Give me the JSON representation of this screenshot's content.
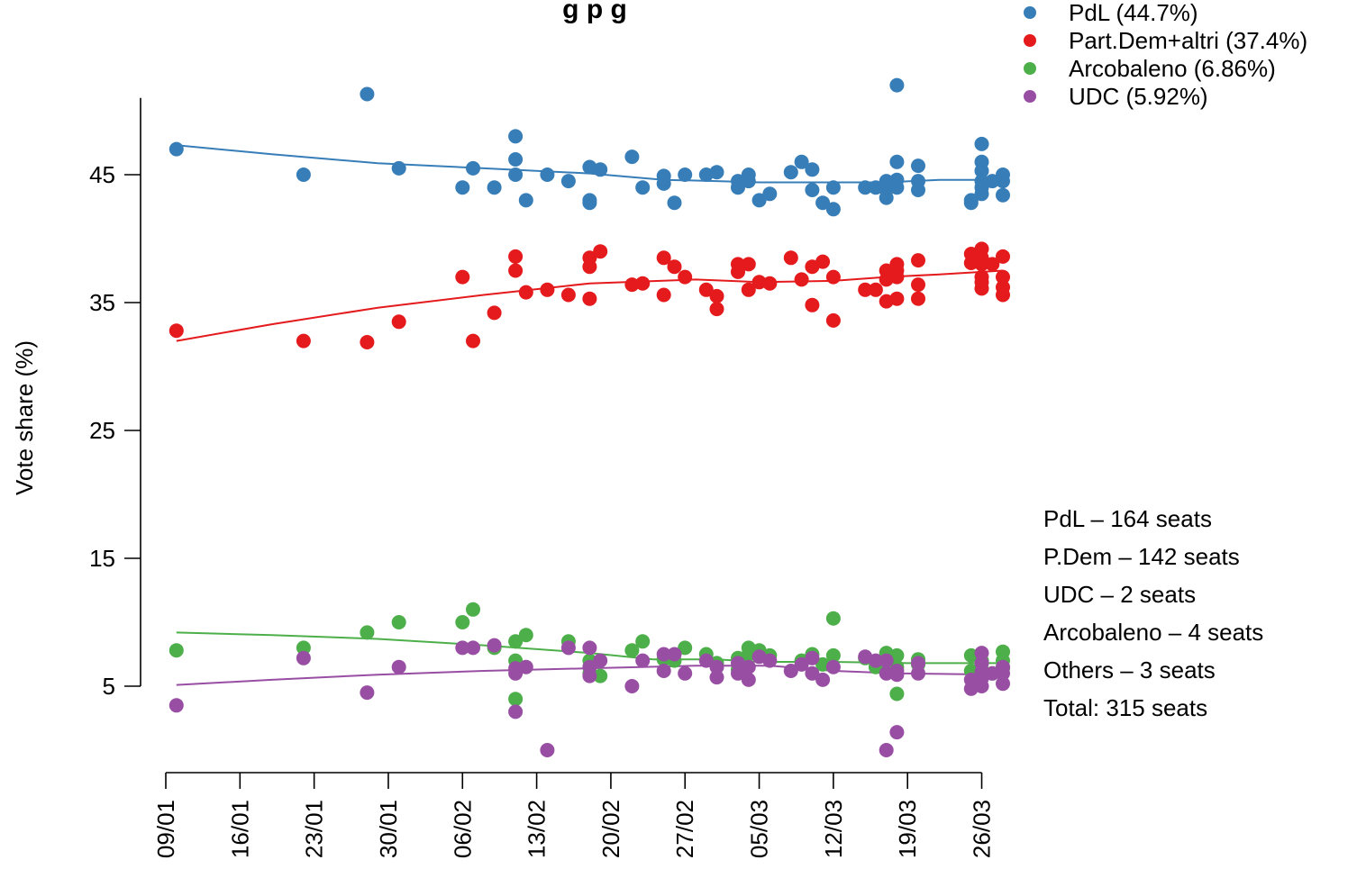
{
  "chart_data": {
    "type": "scatter",
    "title": "g                    p   g",
    "xlabel": "",
    "ylabel": "Vote share (%)",
    "x_tick_labels": [
      "09/01",
      "16/01",
      "23/01",
      "30/01",
      "06/02",
      "13/02",
      "20/02",
      "27/02",
      "05/03",
      "12/03",
      "19/03",
      "26/03"
    ],
    "x_start": "09/01",
    "x_range_days": [
      0,
      77
    ],
    "y_ticks": [
      5,
      15,
      25,
      35,
      45
    ],
    "ylim": [
      -2,
      52
    ],
    "grid": false,
    "legend_position": "top-right",
    "seats": [
      "PdL – 164 seats",
      "P.Dem – 142 seats",
      "UDC – 2 seats",
      "Arcobaleno – 4 seats",
      "Others – 3 seats",
      "Total: 315 seats"
    ],
    "series": [
      {
        "name": "PdL (44.7%)",
        "color": "#377eb8",
        "points": [
          [
            1,
            47
          ],
          [
            13,
            45
          ],
          [
            19,
            51.3
          ],
          [
            22,
            45.5
          ],
          [
            28,
            44
          ],
          [
            29,
            45.5
          ],
          [
            31,
            44
          ],
          [
            33,
            48
          ],
          [
            33,
            46.2
          ],
          [
            33,
            45
          ],
          [
            34,
            43
          ],
          [
            36,
            45
          ],
          [
            38,
            44.5
          ],
          [
            40,
            43
          ],
          [
            40,
            42.8
          ],
          [
            40,
            45.6
          ],
          [
            41,
            45.4
          ],
          [
            44,
            46.4
          ],
          [
            45,
            44
          ],
          [
            47,
            44.9
          ],
          [
            47,
            44.3
          ],
          [
            48,
            42.8
          ],
          [
            49,
            45
          ],
          [
            51,
            45
          ],
          [
            52,
            45.2
          ],
          [
            54,
            44.5
          ],
          [
            54,
            44
          ],
          [
            55,
            45
          ],
          [
            55,
            44.5
          ],
          [
            56,
            43
          ],
          [
            57,
            43.5
          ],
          [
            59,
            45.2
          ],
          [
            60,
            46
          ],
          [
            61,
            45.4
          ],
          [
            61,
            43.8
          ],
          [
            62,
            42.8
          ],
          [
            63,
            42.3
          ],
          [
            63,
            44
          ],
          [
            66,
            44
          ],
          [
            67,
            44
          ],
          [
            68,
            44.5
          ],
          [
            68,
            43.2
          ],
          [
            68,
            43.8
          ],
          [
            69,
            44
          ],
          [
            69,
            44.6
          ],
          [
            69,
            46
          ],
          [
            69,
            52
          ],
          [
            71,
            45.7
          ],
          [
            71,
            44.5
          ],
          [
            71,
            43.8
          ],
          [
            76,
            42.8
          ],
          [
            76,
            43
          ],
          [
            77,
            47.4
          ],
          [
            77,
            46
          ],
          [
            77,
            45.3
          ],
          [
            77,
            44.5
          ],
          [
            77,
            44
          ],
          [
            77,
            43.5
          ],
          [
            78,
            44.5
          ],
          [
            79,
            45
          ],
          [
            79,
            44.5
          ],
          [
            79,
            43.4
          ]
        ],
        "trend": [
          [
            1,
            47.3
          ],
          [
            10,
            46.6
          ],
          [
            20,
            45.9
          ],
          [
            30,
            45.5
          ],
          [
            40,
            45.1
          ],
          [
            47,
            44.6
          ],
          [
            52,
            44.5
          ],
          [
            56,
            44.4
          ],
          [
            62,
            44.4
          ],
          [
            68,
            44.4
          ],
          [
            73,
            44.6
          ],
          [
            79,
            44.6
          ]
        ]
      },
      {
        "name": "Part.Dem+altri (37.4%)",
        "color": "#e41a1c",
        "points": [
          [
            1,
            32.8
          ],
          [
            13,
            32
          ],
          [
            19,
            31.9
          ],
          [
            22,
            33.5
          ],
          [
            28,
            37
          ],
          [
            29,
            32
          ],
          [
            31,
            34.2
          ],
          [
            33,
            38.6
          ],
          [
            33,
            37.5
          ],
          [
            34,
            35.8
          ],
          [
            36,
            36
          ],
          [
            38,
            35.6
          ],
          [
            40,
            35.3
          ],
          [
            40,
            37.8
          ],
          [
            40,
            38.5
          ],
          [
            41,
            39
          ],
          [
            44,
            36.4
          ],
          [
            45,
            36.5
          ],
          [
            47,
            35.6
          ],
          [
            47,
            38.5
          ],
          [
            48,
            37.8
          ],
          [
            49,
            37
          ],
          [
            51,
            36
          ],
          [
            52,
            34.5
          ],
          [
            52,
            35.5
          ],
          [
            54,
            37.4
          ],
          [
            54,
            38
          ],
          [
            55,
            36
          ],
          [
            55,
            38
          ],
          [
            56,
            36.6
          ],
          [
            57,
            36.5
          ],
          [
            59,
            38.5
          ],
          [
            60,
            36.8
          ],
          [
            61,
            34.8
          ],
          [
            61,
            37.8
          ],
          [
            62,
            38.2
          ],
          [
            63,
            37
          ],
          [
            63,
            33.6
          ],
          [
            66,
            36
          ],
          [
            67,
            36
          ],
          [
            68,
            36.8
          ],
          [
            68,
            37.5
          ],
          [
            68,
            35.1
          ],
          [
            69,
            38
          ],
          [
            69,
            37.5
          ],
          [
            69,
            37
          ],
          [
            69,
            35.3
          ],
          [
            71,
            38.3
          ],
          [
            71,
            36.4
          ],
          [
            71,
            35.3
          ],
          [
            76,
            38.8
          ],
          [
            76,
            38.1
          ],
          [
            77,
            39.2
          ],
          [
            77,
            38.5
          ],
          [
            77,
            38
          ],
          [
            77,
            37
          ],
          [
            77,
            36.6
          ],
          [
            77,
            36.1
          ],
          [
            78,
            38
          ],
          [
            79,
            38.6
          ],
          [
            79,
            37
          ],
          [
            79,
            36.2
          ],
          [
            79,
            35.6
          ]
        ],
        "trend": [
          [
            1,
            32
          ],
          [
            10,
            33.3
          ],
          [
            20,
            34.6
          ],
          [
            30,
            35.6
          ],
          [
            40,
            36.5
          ],
          [
            50,
            36.8
          ],
          [
            56,
            36.6
          ],
          [
            63,
            36.7
          ],
          [
            68,
            37
          ],
          [
            73,
            37.2
          ],
          [
            79,
            37.5
          ]
        ]
      },
      {
        "name": "Arcobaleno (6.86%)",
        "color": "#4daf4a",
        "points": [
          [
            1,
            7.8
          ],
          [
            13,
            8
          ],
          [
            19,
            9.2
          ],
          [
            22,
            10
          ],
          [
            28,
            10
          ],
          [
            29,
            11
          ],
          [
            31,
            8
          ],
          [
            33,
            8.5
          ],
          [
            33,
            7
          ],
          [
            33,
            4
          ],
          [
            34,
            9
          ],
          [
            38,
            8.5
          ],
          [
            40,
            7
          ],
          [
            40,
            6
          ],
          [
            41,
            5.8
          ],
          [
            44,
            7.8
          ],
          [
            45,
            8.5
          ],
          [
            47,
            7.1
          ],
          [
            48,
            7
          ],
          [
            49,
            8
          ],
          [
            51,
            7.5
          ],
          [
            52,
            6.8
          ],
          [
            54,
            7.2
          ],
          [
            54,
            6.3
          ],
          [
            55,
            8
          ],
          [
            55,
            7.5
          ],
          [
            56,
            7.8
          ],
          [
            57,
            7.4
          ],
          [
            60,
            7
          ],
          [
            61,
            7.5
          ],
          [
            62,
            6.7
          ],
          [
            63,
            10.3
          ],
          [
            63,
            7.4
          ],
          [
            66,
            7.2
          ],
          [
            67,
            6.5
          ],
          [
            68,
            7.6
          ],
          [
            68,
            6.8
          ],
          [
            69,
            7.4
          ],
          [
            69,
            6.5
          ],
          [
            69,
            4.4
          ],
          [
            71,
            7.1
          ],
          [
            71,
            6.7
          ],
          [
            76,
            7.4
          ],
          [
            76,
            6.2
          ],
          [
            77,
            7
          ],
          [
            77,
            6.3
          ],
          [
            78,
            6
          ],
          [
            79,
            7.7
          ],
          [
            79,
            7
          ],
          [
            79,
            6.4
          ]
        ],
        "trend": [
          [
            1,
            9.2
          ],
          [
            10,
            9
          ],
          [
            20,
            8.7
          ],
          [
            30,
            8.2
          ],
          [
            40,
            7.6
          ],
          [
            46,
            7.1
          ],
          [
            52,
            7.1
          ],
          [
            56,
            6.9
          ],
          [
            63,
            6.9
          ],
          [
            70,
            6.8
          ],
          [
            79,
            6.8
          ]
        ]
      },
      {
        "name": "UDC (5.92%)",
        "color": "#984ea3",
        "points": [
          [
            1,
            3.5
          ],
          [
            13,
            7.2
          ],
          [
            19,
            4.5
          ],
          [
            22,
            6.5
          ],
          [
            28,
            8
          ],
          [
            29,
            8
          ],
          [
            31,
            8.2
          ],
          [
            33,
            6
          ],
          [
            33,
            6.4
          ],
          [
            33,
            3
          ],
          [
            34,
            6.5
          ],
          [
            36,
            0
          ],
          [
            38,
            8
          ],
          [
            40,
            8
          ],
          [
            40,
            6.5
          ],
          [
            40,
            5.8
          ],
          [
            41,
            7
          ],
          [
            44,
            5
          ],
          [
            45,
            7
          ],
          [
            47,
            6.2
          ],
          [
            47,
            7.5
          ],
          [
            48,
            7.5
          ],
          [
            49,
            6
          ],
          [
            51,
            7
          ],
          [
            52,
            5.7
          ],
          [
            52,
            6.5
          ],
          [
            54,
            6
          ],
          [
            54,
            6.8
          ],
          [
            55,
            5.5
          ],
          [
            55,
            6.5
          ],
          [
            56,
            7.3
          ],
          [
            57,
            7
          ],
          [
            59,
            6.2
          ],
          [
            60,
            6.7
          ],
          [
            61,
            6
          ],
          [
            61,
            7.2
          ],
          [
            62,
            5.5
          ],
          [
            63,
            6.5
          ],
          [
            66,
            7.3
          ],
          [
            67,
            7
          ],
          [
            68,
            7
          ],
          [
            68,
            6
          ],
          [
            68,
            0
          ],
          [
            69,
            6.2
          ],
          [
            69,
            5.9
          ],
          [
            69,
            1.4
          ],
          [
            71,
            6.8
          ],
          [
            71,
            6
          ],
          [
            76,
            5.5
          ],
          [
            76,
            4.8
          ],
          [
            77,
            7.6
          ],
          [
            77,
            6.8
          ],
          [
            77,
            6.1
          ],
          [
            77,
            5.6
          ],
          [
            77,
            5
          ],
          [
            78,
            6
          ],
          [
            79,
            6.5
          ],
          [
            79,
            6
          ],
          [
            79,
            5.2
          ]
        ],
        "trend": [
          [
            1,
            5.1
          ],
          [
            10,
            5.5
          ],
          [
            20,
            5.9
          ],
          [
            30,
            6.2
          ],
          [
            40,
            6.4
          ],
          [
            50,
            6.6
          ],
          [
            57,
            6.6
          ],
          [
            63,
            6.2
          ],
          [
            69,
            6
          ],
          [
            79,
            5.9
          ]
        ]
      }
    ]
  }
}
